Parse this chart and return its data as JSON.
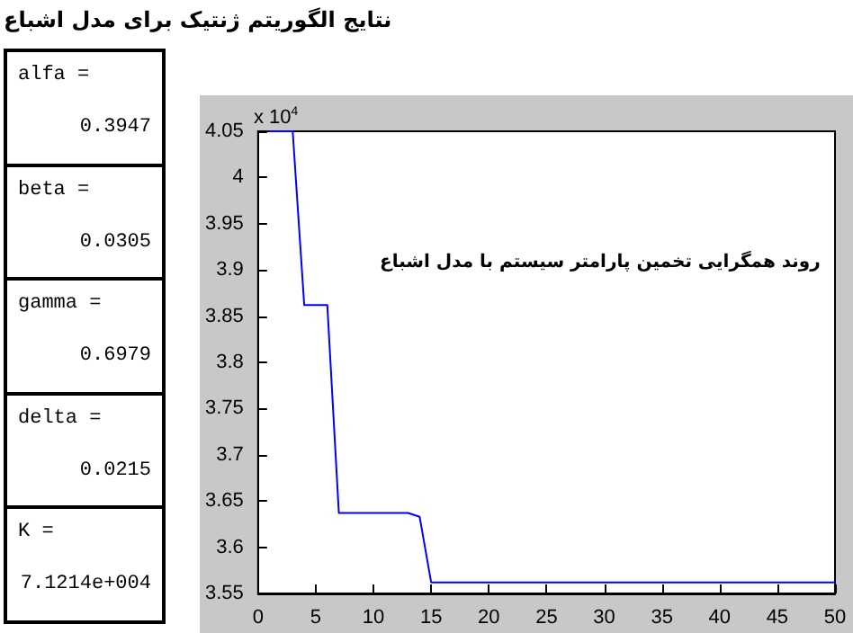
{
  "chart_data": [
    {
      "type": "other",
      "title": "نتایج الگوریتم ژنتیک برای مدل اشباع",
      "annotations": [
        "alfa =",
        "0.3947",
        "beta =",
        "0.0305",
        "gamma =",
        "0.6979",
        "delta =",
        "0.0215",
        "K =",
        "7.1214e+004"
      ]
    },
    {
      "type": "line",
      "annotations": [
        "x 10$^{4}$",
        "روند همگرایی تخمین پارامتر سیستم با مدل اشباع"
      ],
      "x": [
        1,
        2,
        3,
        4,
        5,
        6,
        7,
        8,
        9,
        10,
        11,
        12,
        13,
        14,
        15,
        16,
        17,
        18,
        19,
        20,
        21,
        22,
        23,
        24,
        25,
        26,
        27,
        28,
        29,
        30,
        31,
        32,
        33,
        34,
        35,
        36,
        37,
        38,
        39,
        40,
        41,
        42,
        43,
        44,
        45,
        46,
        47,
        48,
        49,
        50
      ],
      "series": [
        {
          "color": "#0000ff",
          "values": [
            4.05,
            4.05,
            4.05,
            3.862,
            3.862,
            3.862,
            3.637,
            3.637,
            3.637,
            3.637,
            3.637,
            3.637,
            3.637,
            3.633,
            3.562,
            3.562,
            3.562,
            3.562,
            3.562,
            3.562,
            3.562,
            3.562,
            3.562,
            3.562,
            3.562,
            3.562,
            3.562,
            3.562,
            3.562,
            3.562,
            3.562,
            3.562,
            3.562,
            3.562,
            3.562,
            3.562,
            3.562,
            3.562,
            3.562,
            3.562,
            3.562,
            3.562,
            3.562,
            3.562,
            3.562,
            3.562,
            3.562,
            3.562,
            3.562,
            3.562
          ]
        }
      ],
      "xlim": [
        0,
        50
      ],
      "xticks": [
        0,
        5,
        10,
        15,
        20,
        25,
        30,
        35,
        40,
        45,
        50
      ],
      "ylim": [
        3.55,
        4.05
      ],
      "yticks": [
        3.55,
        3.6,
        3.65,
        3.7,
        3.75,
        3.8,
        3.85,
        3.9,
        3.95,
        4,
        4.05
      ],
      "grid": false,
      "marker": "none",
      "line_style": "solid"
    }
  ]
}
